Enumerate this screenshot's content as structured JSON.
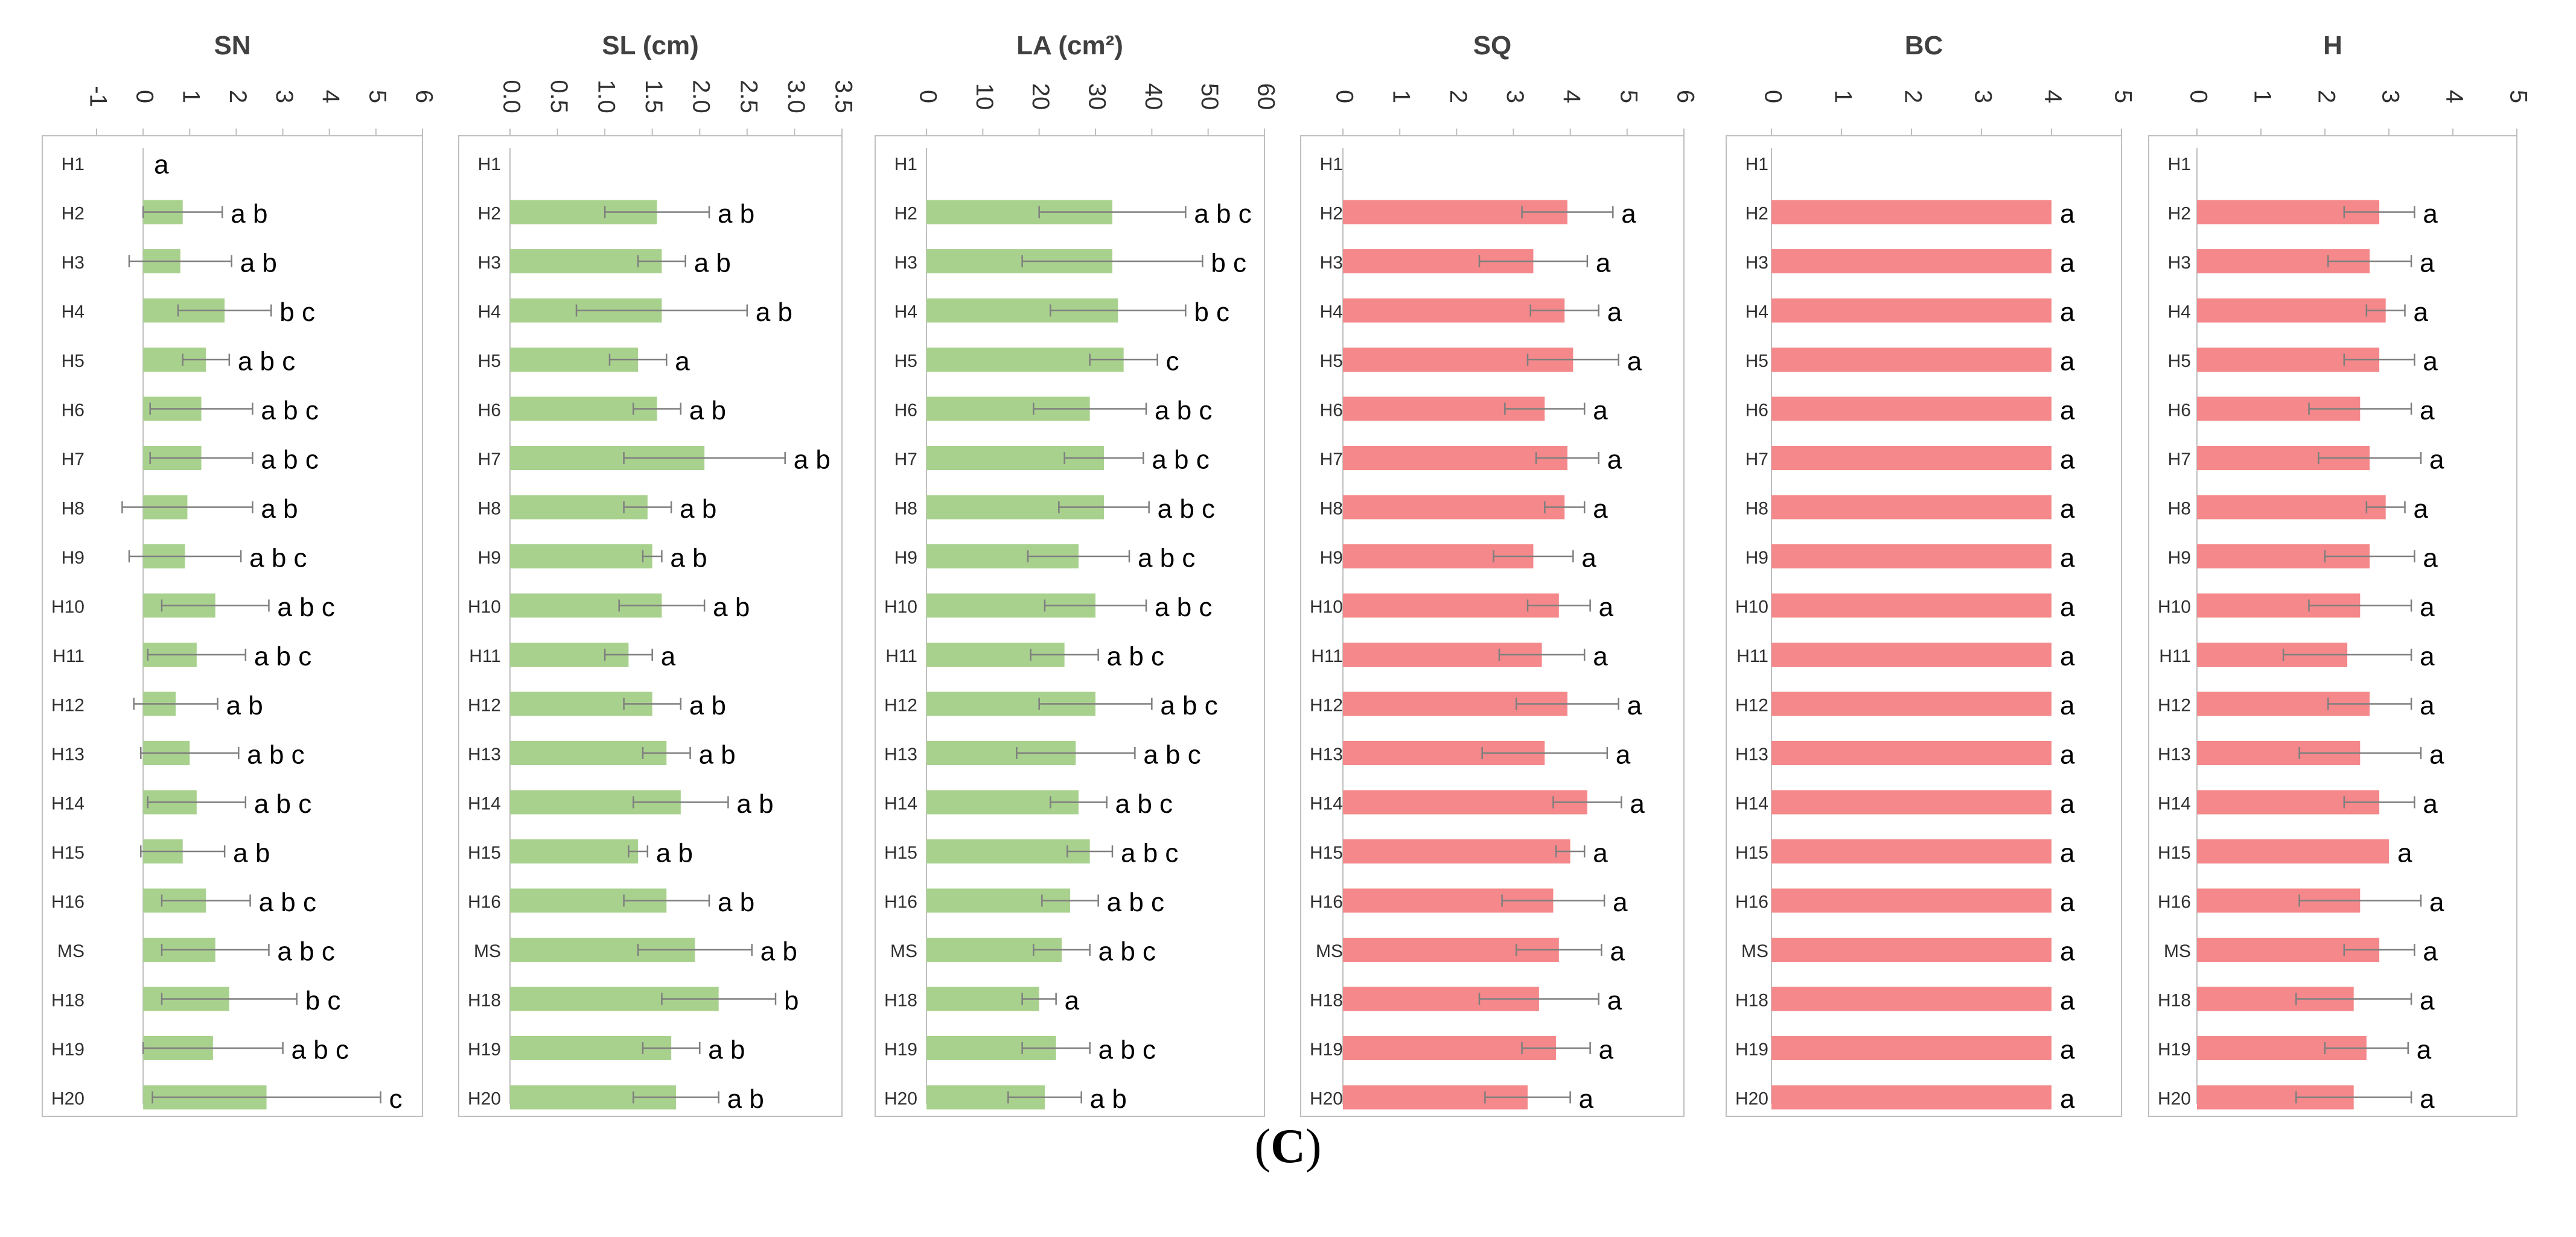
{
  "panel_caption": {
    "open": "(",
    "letter": "C",
    "close": ")"
  },
  "colors": {
    "green": "#a9d18e",
    "red": "#f4888a",
    "axis": "#bfbfbf",
    "error_bar": "#7f7f7f",
    "text": "#000000"
  },
  "chart_data": [
    {
      "type": "bar",
      "orientation": "horizontal",
      "title": "SN",
      "xlim": [
        -1,
        6
      ],
      "xticks": [
        -1,
        0,
        1,
        2,
        3,
        4,
        5,
        6
      ],
      "xtick_labels": [
        "-1",
        "0",
        "1",
        "2",
        "3",
        "4",
        "5",
        "6"
      ],
      "color": "green",
      "categories": [
        "H1",
        "H2",
        "H3",
        "H4",
        "H5",
        "H6",
        "H7",
        "H8",
        "H9",
        "H10",
        "H11",
        "H12",
        "H13",
        "H14",
        "H15",
        "H16",
        "MS",
        "H18",
        "H19",
        "H20"
      ],
      "values": [
        0,
        0.85,
        0.8,
        1.75,
        1.35,
        1.25,
        1.25,
        0.95,
        0.9,
        1.55,
        1.15,
        0.7,
        1.0,
        1.15,
        0.85,
        1.35,
        1.55,
        1.85,
        1.5,
        2.65
      ],
      "errors": [
        0,
        0.85,
        1.1,
        1.0,
        0.5,
        1.1,
        1.1,
        1.4,
        1.2,
        1.15,
        1.05,
        0.9,
        1.05,
        1.05,
        0.9,
        0.95,
        1.15,
        1.45,
        1.5,
        2.45
      ],
      "labels": [
        "a",
        "a b",
        "a b",
        "b c",
        "a b c",
        "a b c",
        "a b c",
        "a b",
        "a b c",
        "a b c",
        "a b c",
        "a b",
        "a b c",
        "a b c",
        "a b",
        "a b c",
        "a b c",
        "b c",
        "a b c",
        "c"
      ]
    },
    {
      "type": "bar",
      "orientation": "horizontal",
      "title": "SL (cm)",
      "xlim": [
        0,
        3.5
      ],
      "xticks": [
        0,
        0.5,
        1,
        1.5,
        2,
        2.5,
        3,
        3.5
      ],
      "xtick_labels": [
        "0.0",
        "0.5",
        "1.0",
        "1.5",
        "2.0",
        "2.5",
        "3.0",
        "3.5"
      ],
      "color": "green",
      "categories": [
        "H1",
        "H2",
        "H3",
        "H4",
        "H5",
        "H6",
        "H7",
        "H8",
        "H9",
        "H10",
        "H11",
        "H12",
        "H13",
        "H14",
        "H15",
        "H16",
        "MS",
        "H18",
        "H19",
        "H20"
      ],
      "values": [
        0,
        1.55,
        1.6,
        1.6,
        1.35,
        1.55,
        2.05,
        1.45,
        1.5,
        1.6,
        1.25,
        1.5,
        1.65,
        1.8,
        1.35,
        1.65,
        1.95,
        2.2,
        1.7,
        1.75
      ],
      "errors": [
        0,
        0.55,
        0.25,
        0.9,
        0.3,
        0.25,
        0.85,
        0.25,
        0.1,
        0.45,
        0.25,
        0.3,
        0.25,
        0.5,
        0.1,
        0.45,
        0.6,
        0.6,
        0.3,
        0.45
      ],
      "labels": [
        "",
        "a b",
        "a b",
        "a b",
        "a",
        "a b",
        "a b",
        "a b",
        "a b",
        "a b",
        "a",
        "a b",
        "a b",
        "a b",
        "a b",
        "a b",
        "a b",
        "b",
        "a b",
        "a b"
      ]
    },
    {
      "type": "bar",
      "orientation": "horizontal",
      "title": "LA (cm²)",
      "xlim": [
        0,
        60
      ],
      "xticks": [
        0,
        10,
        20,
        30,
        40,
        50,
        60
      ],
      "xtick_labels": [
        "0",
        "10",
        "20",
        "30",
        "40",
        "50",
        "60"
      ],
      "color": "green",
      "categories": [
        "H1",
        "H2",
        "H3",
        "H4",
        "H5",
        "H6",
        "H7",
        "H8",
        "H9",
        "H10",
        "H11",
        "H12",
        "H13",
        "H14",
        "H15",
        "H16",
        "MS",
        "H18",
        "H19",
        "H20"
      ],
      "values": [
        0,
        33,
        33,
        34,
        35,
        29,
        31.5,
        31.5,
        27,
        30,
        24.5,
        30,
        26.5,
        27,
        29,
        25.5,
        24,
        20,
        23,
        21
      ],
      "errors": [
        0,
        13,
        16,
        12,
        6,
        10,
        7,
        8,
        9,
        9,
        6,
        10,
        10.5,
        5,
        4,
        5,
        5,
        3,
        6,
        6.5
      ],
      "labels": [
        "",
        "a b c",
        "b c",
        "b c",
        "c",
        "a b c",
        "a b c",
        "a b c",
        "a b c",
        "a b c",
        "a b c",
        "a b c",
        "a b c",
        "a b c",
        "a b c",
        "a b c",
        "a b c",
        "a",
        "a b c",
        "a b"
      ]
    },
    {
      "type": "bar",
      "orientation": "horizontal",
      "title": "SQ",
      "xlim": [
        0,
        6
      ],
      "xticks": [
        0,
        1,
        2,
        3,
        4,
        5,
        6
      ],
      "xtick_labels": [
        "0",
        "1",
        "2",
        "3",
        "4",
        "5",
        "6"
      ],
      "color": "red",
      "categories": [
        "H1",
        "H2",
        "H3",
        "H4",
        "H5",
        "H6",
        "H7",
        "H8",
        "H9",
        "H10",
        "H11",
        "H12",
        "H13",
        "H14",
        "H15",
        "H16",
        "MS",
        "H18",
        "H19",
        "H20"
      ],
      "values": [
        0,
        3.95,
        3.35,
        3.9,
        4.05,
        3.55,
        3.95,
        3.9,
        3.35,
        3.8,
        3.5,
        3.95,
        3.55,
        4.3,
        4.0,
        3.7,
        3.8,
        3.45,
        3.75,
        3.25
      ],
      "errors": [
        0,
        0.8,
        0.95,
        0.6,
        0.8,
        0.7,
        0.55,
        0.35,
        0.7,
        0.55,
        0.75,
        0.9,
        1.1,
        0.6,
        0.25,
        0.9,
        0.75,
        1.05,
        0.6,
        0.75
      ],
      "labels": [
        "",
        "a",
        "a",
        "a",
        "a",
        "a",
        "a",
        "a",
        "a",
        "a",
        "a",
        "a",
        "a",
        "a",
        "a",
        "a",
        "a",
        "a",
        "a",
        "a"
      ]
    },
    {
      "type": "bar",
      "orientation": "horizontal",
      "title": "BC",
      "xlim": [
        0,
        5
      ],
      "xticks": [
        0,
        1,
        2,
        3,
        4,
        5
      ],
      "xtick_labels": [
        "0",
        "1",
        "2",
        "3",
        "4",
        "5"
      ],
      "color": "red",
      "categories": [
        "H1",
        "H2",
        "H3",
        "H4",
        "H5",
        "H6",
        "H7",
        "H8",
        "H9",
        "H10",
        "H11",
        "H12",
        "H13",
        "H14",
        "H15",
        "H16",
        "MS",
        "H18",
        "H19",
        "H20"
      ],
      "values": [
        0,
        4,
        4,
        4,
        4,
        4,
        4,
        4,
        4,
        4,
        4,
        4,
        4,
        4,
        4,
        4,
        4,
        4,
        4,
        4
      ],
      "errors": [
        0,
        0,
        0,
        0,
        0,
        0,
        0,
        0,
        0,
        0,
        0,
        0,
        0,
        0,
        0,
        0,
        0,
        0,
        0,
        0
      ],
      "labels": [
        "",
        "a",
        "a",
        "a",
        "a",
        "a",
        "a",
        "a",
        "a",
        "a",
        "a",
        "a",
        "a",
        "a",
        "a",
        "a",
        "a",
        "a",
        "a",
        "a"
      ]
    },
    {
      "type": "bar",
      "orientation": "horizontal",
      "title": "H",
      "xlim": [
        0,
        5
      ],
      "xticks": [
        0,
        1,
        2,
        3,
        4,
        5
      ],
      "xtick_labels": [
        "0",
        "1",
        "2",
        "3",
        "4",
        "5"
      ],
      "color": "red",
      "categories": [
        "H1",
        "H2",
        "H3",
        "H4",
        "H5",
        "H6",
        "H7",
        "H8",
        "H9",
        "H10",
        "H11",
        "H12",
        "H13",
        "H14",
        "H15",
        "H16",
        "MS",
        "H18",
        "H19",
        "H20"
      ],
      "values": [
        0,
        2.85,
        2.7,
        2.95,
        2.85,
        2.55,
        2.7,
        2.95,
        2.7,
        2.55,
        2.35,
        2.7,
        2.55,
        2.85,
        3.0,
        2.55,
        2.85,
        2.45,
        2.65,
        2.45
      ],
      "errors": [
        0,
        0.55,
        0.65,
        0.3,
        0.55,
        0.8,
        0.8,
        0.3,
        0.7,
        0.8,
        1.0,
        0.65,
        0.95,
        0.55,
        0,
        0.95,
        0.55,
        0.9,
        0.65,
        0.9
      ],
      "labels": [
        "",
        "a",
        "a",
        "a",
        "a",
        "a",
        "a",
        "a",
        "a",
        "a",
        "a",
        "a",
        "a",
        "a",
        "a",
        "a",
        "a",
        "a",
        "a",
        "a"
      ]
    }
  ]
}
